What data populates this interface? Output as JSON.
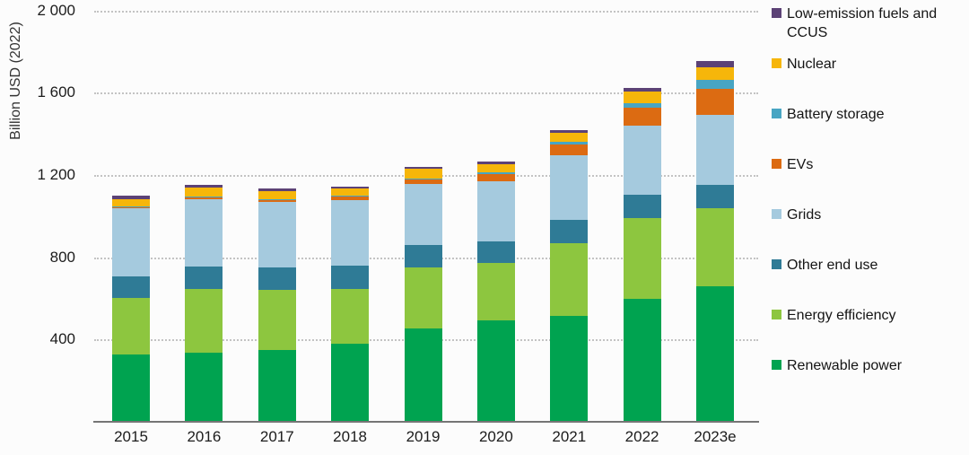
{
  "chart_data": {
    "type": "bar",
    "stacked": true,
    "title": "",
    "ylabel": "Billion USD (2022)",
    "xlabel": "",
    "ylim": [
      0,
      2000
    ],
    "grid": "dotted-horizontal",
    "legend_position": "right",
    "categories": [
      "2015",
      "2016",
      "2017",
      "2018",
      "2019",
      "2020",
      "2021",
      "2022",
      "2023e"
    ],
    "yticks": [
      {
        "value": 2000,
        "label": "2 000"
      },
      {
        "value": 1600,
        "label": "1 600"
      },
      {
        "value": 1200,
        "label": "1 200"
      },
      {
        "value": 800,
        "label": "800"
      },
      {
        "value": 400,
        "label": "400"
      }
    ],
    "series": [
      {
        "name": "Renewable power",
        "color": "#00a350",
        "values": [
          327,
          334,
          350,
          380,
          454,
          492,
          516,
          596,
          660
        ]
      },
      {
        "name": "Energy efficiency",
        "color": "#8dc63f",
        "values": [
          276,
          313,
          293,
          265,
          295,
          281,
          352,
          393,
          378
        ]
      },
      {
        "name": "Other end use",
        "color": "#2f7b96",
        "values": [
          105,
          109,
          106,
          116,
          109,
          106,
          113,
          116,
          116
        ]
      },
      {
        "name": "Grids",
        "color": "#a5cade",
        "values": [
          332,
          326,
          320,
          318,
          298,
          291,
          313,
          334,
          340
        ]
      },
      {
        "name": "EVs",
        "color": "#dc6b12",
        "values": [
          5,
          8,
          10,
          17,
          22,
          33,
          54,
          87,
          124
        ]
      },
      {
        "name": "Battery storage",
        "color": "#48a5c3",
        "values": [
          2,
          4,
          2,
          4,
          7,
          10,
          15,
          25,
          44
        ]
      },
      {
        "name": "Nuclear",
        "color": "#f6b60a",
        "values": [
          36,
          44,
          42,
          33,
          44,
          39,
          44,
          55,
          62
        ]
      },
      {
        "name": "Low-emission fuels and CCUS",
        "color": "#5c4276",
        "values": [
          15,
          15,
          12,
          10,
          10,
          12,
          12,
          17,
          30
        ]
      }
    ],
    "legend": [
      "Low-emission fuels and CCUS",
      "Nuclear",
      "Battery storage",
      "EVs",
      "Grids",
      "Other end use",
      "Energy efficiency",
      "Renewable power"
    ]
  }
}
